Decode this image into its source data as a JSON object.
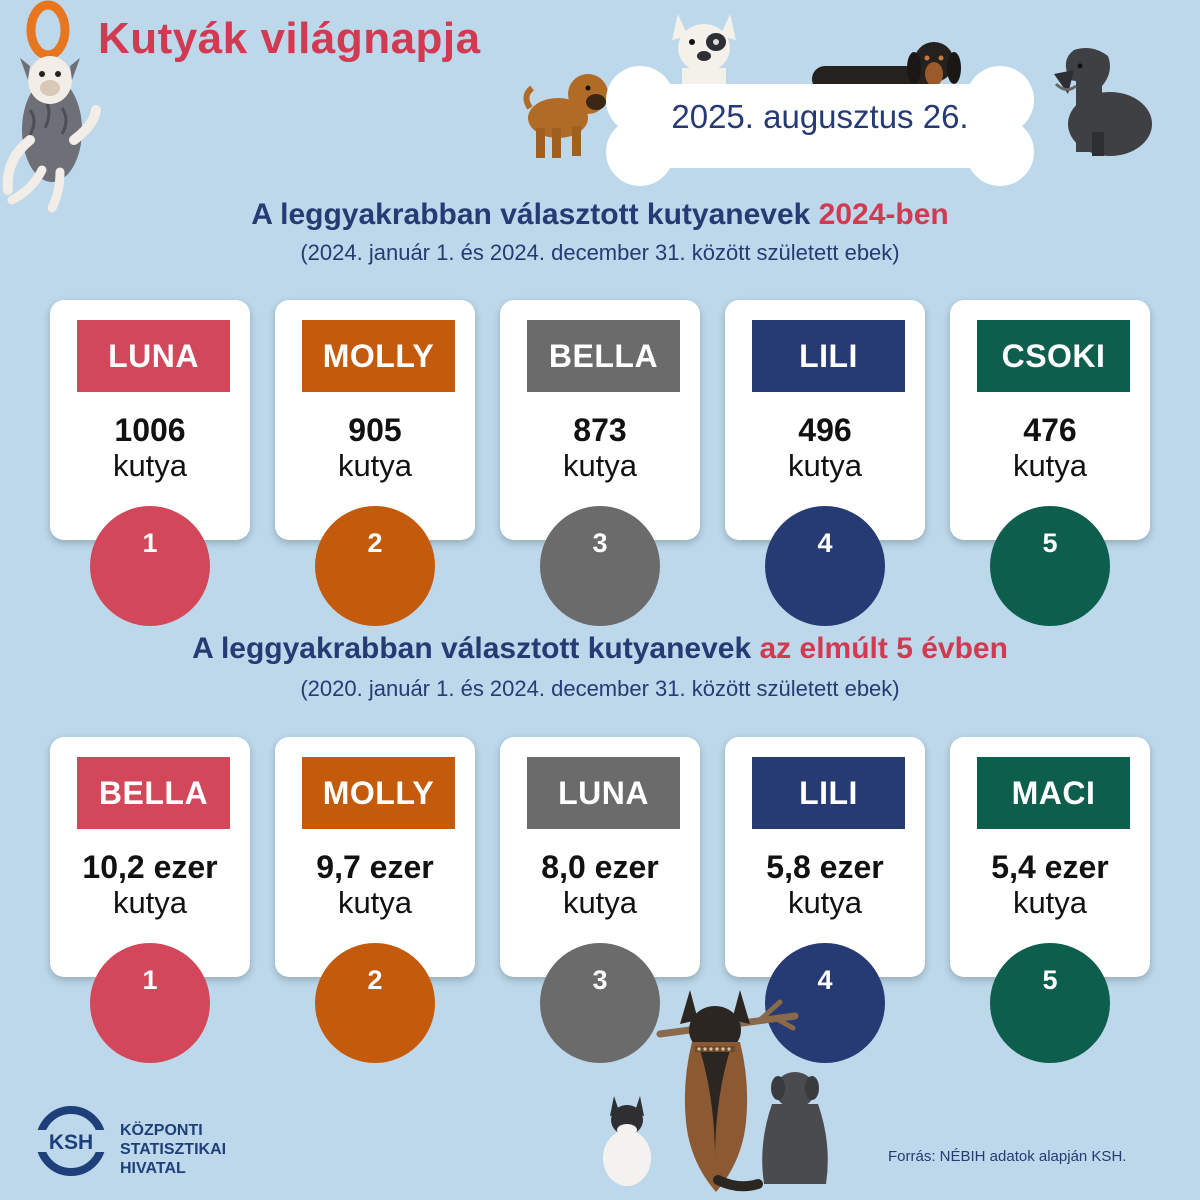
{
  "title": "Kutyák világnapja",
  "date": "2025. augusztus 26.",
  "colors": {
    "background": "#bcd8ea",
    "title_red": "#d23a52",
    "navy": "#263a73",
    "rank1": "#d2485a",
    "rank2": "#c45a0c",
    "rank3": "#6b6b6b",
    "rank4": "#263a73",
    "rank5": "#0e5e4e"
  },
  "section1": {
    "heading_main": "A leggyakrabban választott kutyanevek ",
    "heading_accent": "2024-ben",
    "subheading": "(2024. január 1. és 2024. december 31. között született ebek)",
    "cards": [
      {
        "name": "LUNA",
        "count": "1006",
        "unit": "kutya",
        "rank": "1"
      },
      {
        "name": "MOLLY",
        "count": "905",
        "unit": "kutya",
        "rank": "2"
      },
      {
        "name": "BELLA",
        "count": "873",
        "unit": "kutya",
        "rank": "3"
      },
      {
        "name": "LILI",
        "count": "496",
        "unit": "kutya",
        "rank": "4"
      },
      {
        "name": "CSOKI",
        "count": "476",
        "unit": "kutya",
        "rank": "5"
      }
    ]
  },
  "section2": {
    "heading_main": "A leggyakrabban választott kutyanevek ",
    "heading_accent": "az elmúlt 5 évben",
    "subheading": "(2020. január 1. és 2024. december 31. között született ebek)",
    "cards": [
      {
        "name": "BELLA",
        "count": "10,2 ezer",
        "unit": "kutya",
        "rank": "1"
      },
      {
        "name": "MOLLY",
        "count": "9,7 ezer",
        "unit": "kutya",
        "rank": "2"
      },
      {
        "name": "LUNA",
        "count": "8,0 ezer",
        "unit": "kutya",
        "rank": "3"
      },
      {
        "name": "LILI",
        "count": "5,8 ezer",
        "unit": "kutya",
        "rank": "4"
      },
      {
        "name": "MACI",
        "count": "5,4 ezer",
        "unit": "kutya",
        "rank": "5"
      }
    ]
  },
  "logo": {
    "abbr": "KSH",
    "line1": "KÖZPONTI",
    "line2": "STATISZTIKAI",
    "line3": "HIVATAL"
  },
  "source": "Forrás: NÉBIH adatok alapján KSH."
}
